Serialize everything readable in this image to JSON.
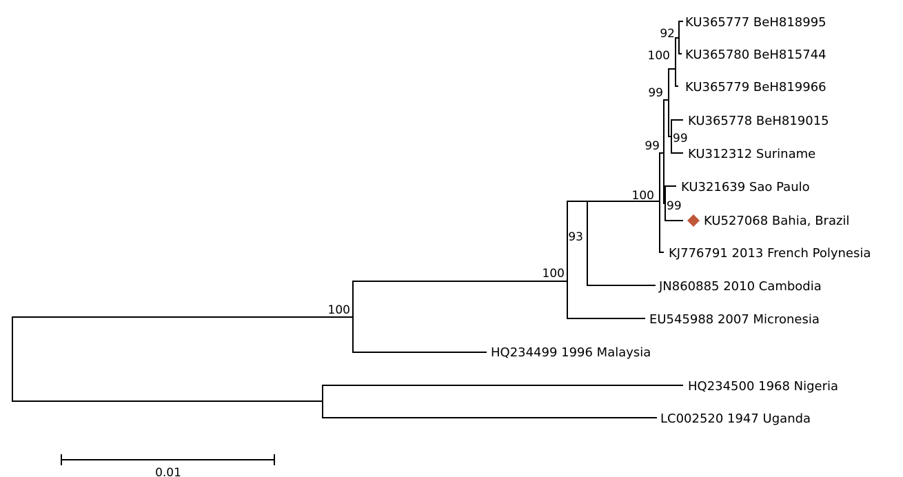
{
  "tree": {
    "taxa": [
      {
        "id": "t1",
        "label": "KU365777 BeH818995"
      },
      {
        "id": "t2",
        "label": "KU365780 BeH815744"
      },
      {
        "id": "t3",
        "label": "KU365779 BeH819966"
      },
      {
        "id": "t4",
        "label": "KU365778 BeH819015"
      },
      {
        "id": "t5",
        "label": "KU312312 Suriname"
      },
      {
        "id": "t6",
        "label": "KU321639 Sao Paulo"
      },
      {
        "id": "t7",
        "label": "KU527068 Bahia, Brazil",
        "marker": "diamond-icon",
        "marker_color": "#c0573a"
      },
      {
        "id": "t8",
        "label": "KJ776791 2013 French Polynesia"
      },
      {
        "id": "t9",
        "label": "JN860885 2010 Cambodia"
      },
      {
        "id": "t10",
        "label": "EU545988 2007 Micronesia"
      },
      {
        "id": "t11",
        "label": "HQ234499 1996 Malaysia"
      },
      {
        "id": "t12",
        "label": "HQ234500 1968 Nigeria"
      },
      {
        "id": "t13",
        "label": "LC002520 1947 Uganda"
      }
    ],
    "support_values": [
      "92",
      "100",
      "99",
      "99",
      "99",
      "100",
      "99",
      "93",
      "100",
      "100"
    ],
    "scale_bar": {
      "label": "0.01"
    },
    "branch_color": "#000000"
  }
}
